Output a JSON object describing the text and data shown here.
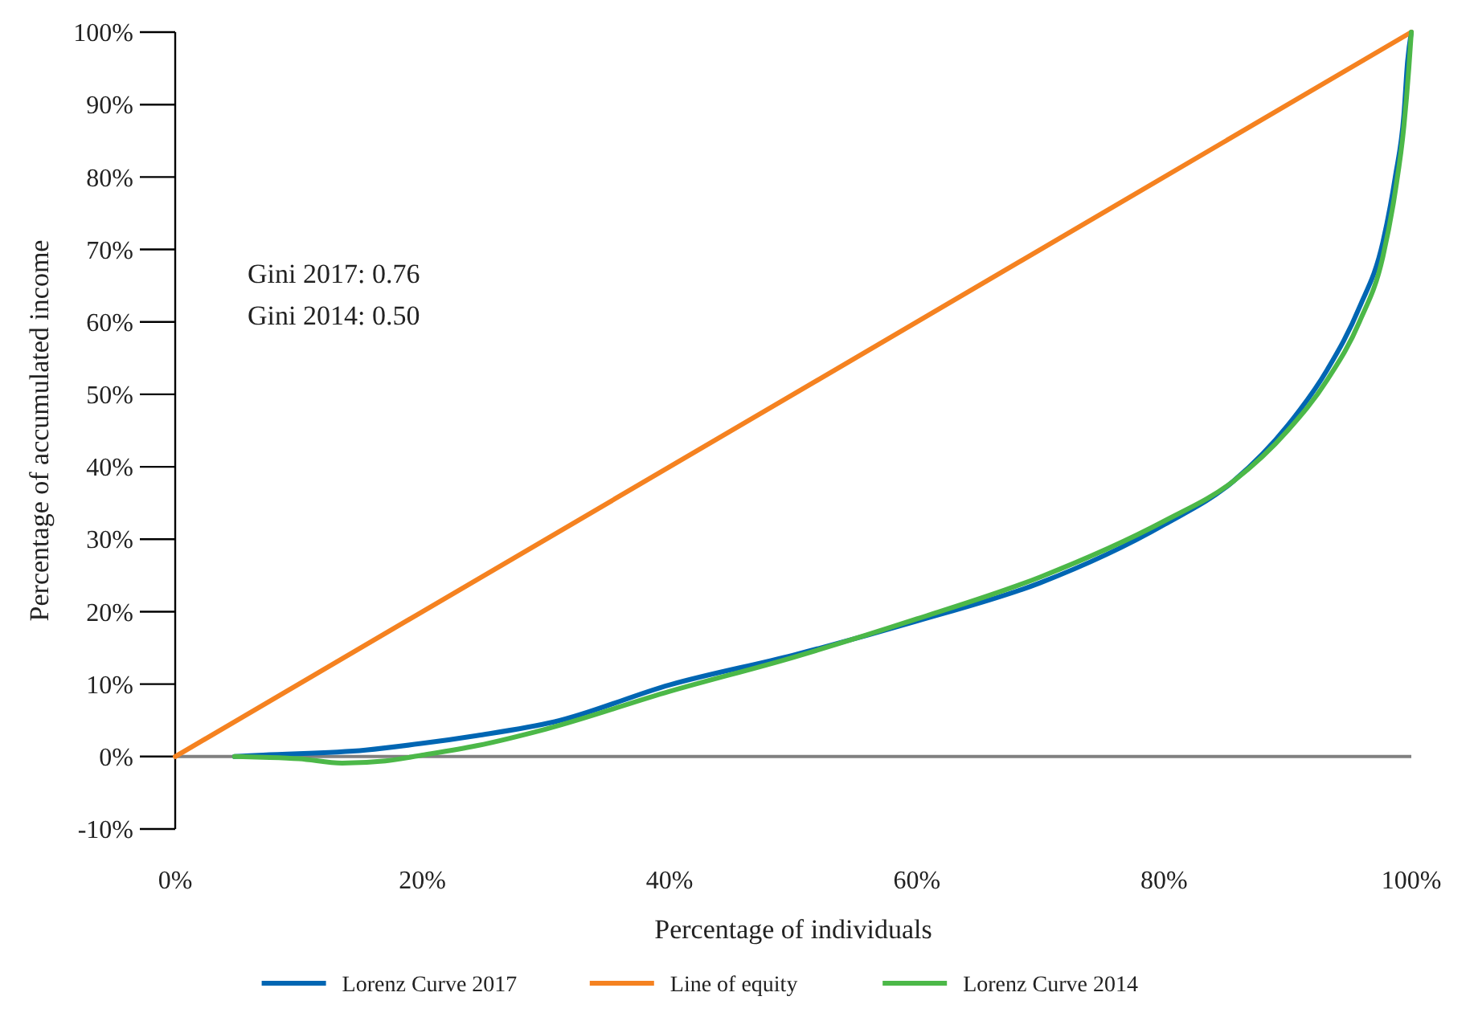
{
  "chart_data": {
    "type": "line",
    "xlabel": "Percentage of individuals",
    "ylabel": "Percentage of accumulated income",
    "xlim": [
      0,
      100
    ],
    "ylim": [
      -10,
      100
    ],
    "xticks": [
      {
        "value": 0,
        "label": "0%"
      },
      {
        "value": 20,
        "label": "20%"
      },
      {
        "value": 40,
        "label": "40%"
      },
      {
        "value": 60,
        "label": "60%"
      },
      {
        "value": 80,
        "label": "80%"
      },
      {
        "value": 100,
        "label": "100%"
      }
    ],
    "yticks": [
      {
        "value": -10,
        "label": "-10%"
      },
      {
        "value": 0,
        "label": "0%"
      },
      {
        "value": 10,
        "label": "10%"
      },
      {
        "value": 20,
        "label": "20%"
      },
      {
        "value": 30,
        "label": "30%"
      },
      {
        "value": 40,
        "label": "40%"
      },
      {
        "value": 50,
        "label": "50%"
      },
      {
        "value": 60,
        "label": "60%"
      },
      {
        "value": 70,
        "label": "70%"
      },
      {
        "value": 80,
        "label": "80%"
      },
      {
        "value": 90,
        "label": "90%"
      },
      {
        "value": 100,
        "label": "100%"
      }
    ],
    "grid": false,
    "legend": "bottom",
    "marker": "none",
    "line_style": "solid",
    "ref_lines": [
      {
        "axis": "y",
        "value": 0,
        "color": "#808080"
      }
    ],
    "annotations": [
      "Gini 2017: 0.76",
      "Gini 2014: 0.50"
    ],
    "series": [
      {
        "name": "Lorenz Curve 2017",
        "color": "#0066b3",
        "x": [
          4.8,
          7.1,
          15.4,
          19.9,
          24.4,
          30.7,
          40,
          50,
          60,
          70,
          80,
          85.6,
          90,
          93.2,
          95.8,
          97.7,
          98.7,
          99.4,
          99.7,
          100
        ],
        "values": [
          0,
          0.2,
          0.9,
          1.8,
          2.9,
          4.8,
          9.9,
          14,
          18.7,
          24,
          32,
          38,
          45.7,
          53.4,
          62,
          71,
          80,
          88.6,
          96,
          100
        ]
      },
      {
        "name": "Line of equity",
        "color": "#f58220",
        "x": [
          0,
          100
        ],
        "values": [
          0,
          100
        ]
      },
      {
        "name": "Lorenz Curve 2014",
        "color": "#4cb848",
        "x": [
          4.8,
          7.1,
          10,
          13.5,
          17,
          20,
          24.4,
          30,
          40,
          50,
          60,
          70,
          80,
          85.6,
          90,
          93.2,
          95.8,
          97.7,
          98.7,
          99.4,
          99.8,
          100
        ],
        "values": [
          0,
          -0.1,
          -0.3,
          -0.9,
          -0.6,
          0.2,
          1.5,
          3.8,
          9,
          13.7,
          19,
          24.8,
          32.5,
          38,
          45,
          52,
          60,
          69,
          78,
          87,
          95,
          100
        ]
      }
    ]
  }
}
